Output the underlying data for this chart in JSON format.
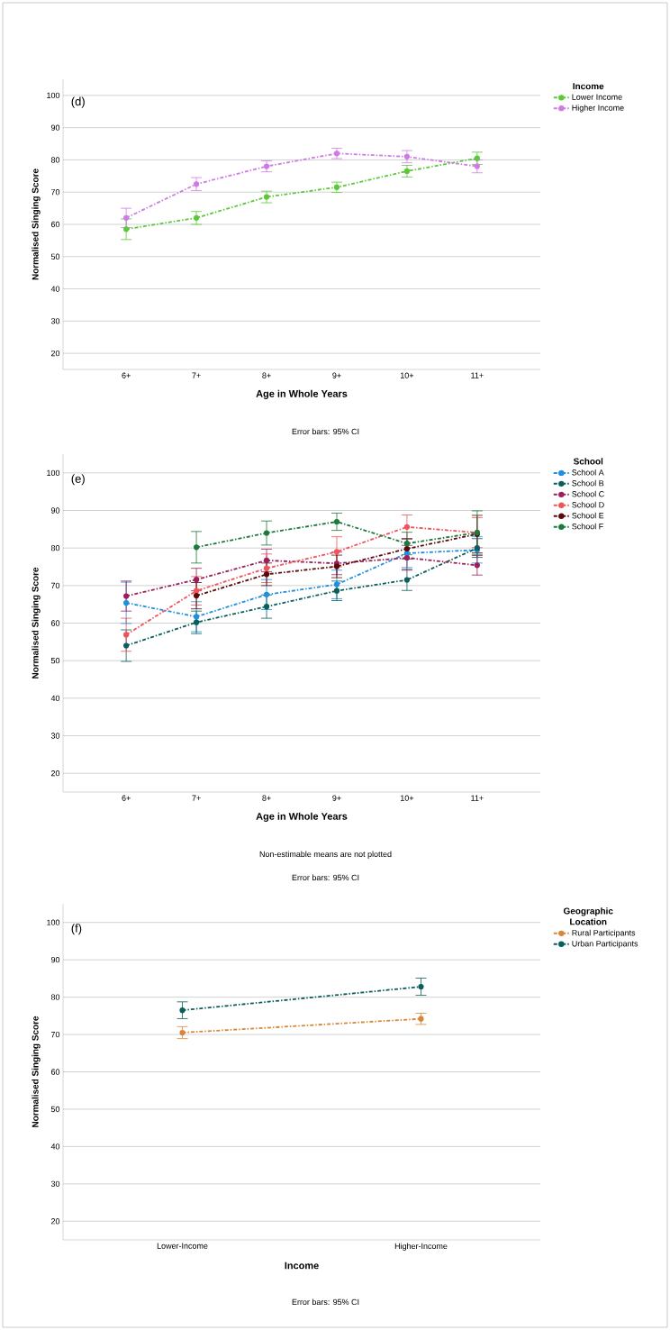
{
  "chart_data": [
    {
      "type": "line",
      "categories": [
        "6+",
        "7+",
        "8+",
        "9+",
        "10+",
        "11+"
      ],
      "xlabel": "Age in Whole Years",
      "ylabel": "Normalised Singing Score",
      "legend_title": "Income",
      "ylim": [
        15,
        105
      ],
      "yticks": [
        20,
        30,
        40,
        50,
        60,
        70,
        80,
        90,
        100
      ],
      "grid": "y",
      "legend": "right",
      "marker": "circle",
      "line_style": "dashed",
      "annotations": [
        "(d)",
        "Error bars: 95% CI"
      ],
      "series": [
        {
          "name": "Lower Income",
          "color": "#5cc83a",
          "values": [
            58.5,
            62,
            68.5,
            71.5,
            76.5,
            80.5
          ],
          "errors": [
            3.2,
            2,
            1.8,
            1.6,
            1.8,
            1.9
          ]
        },
        {
          "name": "Higher Income",
          "color": "#d07ae6",
          "values": [
            62,
            72.5,
            78,
            82,
            81,
            78
          ],
          "errors": [
            3,
            2,
            1.7,
            1.6,
            1.9,
            2
          ]
        }
      ]
    },
    {
      "type": "line",
      "categories": [
        "6+",
        "7+",
        "8+",
        "9+",
        "10+",
        "11+"
      ],
      "xlabel": "Age in Whole Years",
      "ylabel": "Normalised Singing Score",
      "legend_title": "School",
      "ylim": [
        15,
        105
      ],
      "yticks": [
        20,
        30,
        40,
        50,
        60,
        70,
        80,
        90,
        100
      ],
      "grid": "y",
      "legend": "right",
      "marker": "circle",
      "line_style": "dashed",
      "annotations": [
        "(e)",
        "Non-estimable means are not plotted",
        "Error bars: 95% CI"
      ],
      "series": [
        {
          "name": "School A",
          "color": "#1e90e0",
          "values": [
            65.4,
            61.7,
            67.6,
            70.3,
            78.6,
            79.5
          ],
          "errors": [
            5.5,
            4,
            4,
            3.8,
            3.8,
            3.5
          ]
        },
        {
          "name": "School B",
          "color": "#0b5e5e",
          "values": [
            54,
            60.2,
            64.4,
            68.6,
            71.5,
            80
          ],
          "errors": [
            4.2,
            3,
            3.1,
            2.6,
            2.8,
            2.5
          ]
        },
        {
          "name": "School C",
          "color": "#9c1f5a",
          "values": [
            67.2,
            71.6,
            76.7,
            75.9,
            77.4,
            75.4
          ],
          "errors": [
            4,
            3,
            3,
            3,
            3.3,
            2.6
          ]
        },
        {
          "name": "School D",
          "color": "#f2525a",
          "values": [
            56.9,
            68.6,
            74.6,
            79,
            85.6,
            84.1
          ],
          "errors": [
            4.4,
            3.8,
            3.8,
            4,
            3.2,
            4
          ]
        },
        {
          "name": "School E",
          "color": "#5a0a0a",
          "values": [
            null,
            67.3,
            73,
            75.1,
            79.8,
            83.7
          ],
          "errors": [
            null,
            3.5,
            3,
            3,
            2.7,
            5
          ]
        },
        {
          "name": "School F",
          "color": "#1e7a3a",
          "values": [
            null,
            80.2,
            84,
            87,
            81.2,
            84.1
          ],
          "errors": [
            null,
            4.2,
            3.2,
            2.3,
            3,
            5.8
          ]
        }
      ]
    },
    {
      "type": "line",
      "categories": [
        "Lower-Income",
        "Higher-Income"
      ],
      "xlabel": "Income",
      "ylabel": "Normalised Singing Score",
      "legend_title": "Geographic Location",
      "ylim": [
        15,
        105
      ],
      "yticks": [
        20,
        30,
        40,
        50,
        60,
        70,
        80,
        90,
        100
      ],
      "grid": "y",
      "legend": "right",
      "marker": "circle",
      "line_style": "dashed",
      "annotations": [
        "(f)",
        "Error bars: 95% CI"
      ],
      "series": [
        {
          "name": "Rural Participants",
          "color": "#d9863a",
          "values": [
            70.5,
            74.2
          ],
          "errors": [
            1.6,
            1.5
          ]
        },
        {
          "name": "Urban Participants",
          "color": "#0b5e5e",
          "values": [
            76.5,
            82.8
          ],
          "errors": [
            2.25,
            2.3
          ]
        }
      ]
    }
  ]
}
